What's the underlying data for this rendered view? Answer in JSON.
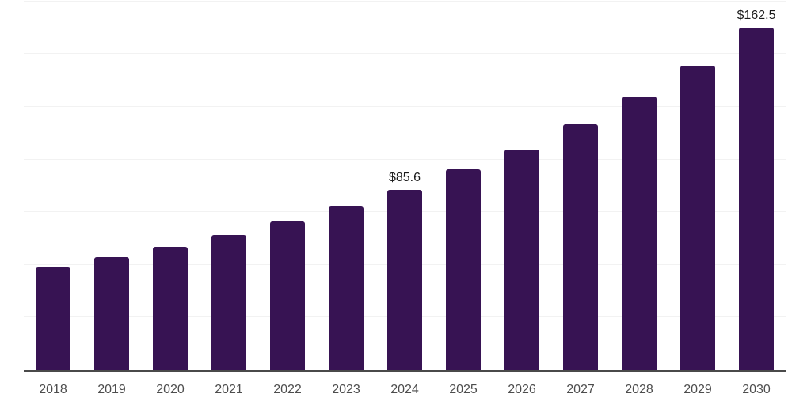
{
  "colors": {
    "bar": "#371353",
    "gridline": "#f2f2f2",
    "axis_line": "#4a4a4a",
    "x_axis_label": "#4d4d4d",
    "data_label": "#1a1a1a",
    "background": "#ffffff"
  },
  "chart_data": {
    "type": "bar",
    "categories": [
      "2018",
      "2019",
      "2020",
      "2021",
      "2022",
      "2023",
      "2024",
      "2025",
      "2026",
      "2027",
      "2028",
      "2029",
      "2030"
    ],
    "values": [
      48.9,
      53.8,
      58.7,
      64.3,
      70.6,
      77.7,
      85.6,
      95.3,
      104.6,
      116.6,
      130.0,
      144.6,
      162.5
    ],
    "point_labels": [
      "",
      "",
      "",
      "",
      "",
      "",
      "$85.6",
      "",
      "",
      "",
      "",
      "",
      "$162.5"
    ],
    "xlabel": "",
    "ylabel": "",
    "ylim": [
      0,
      175.6
    ],
    "gridline_values": [
      25,
      50,
      75,
      100,
      125,
      150,
      175
    ],
    "grid": true,
    "legend": false,
    "bar_color": "#371353"
  }
}
